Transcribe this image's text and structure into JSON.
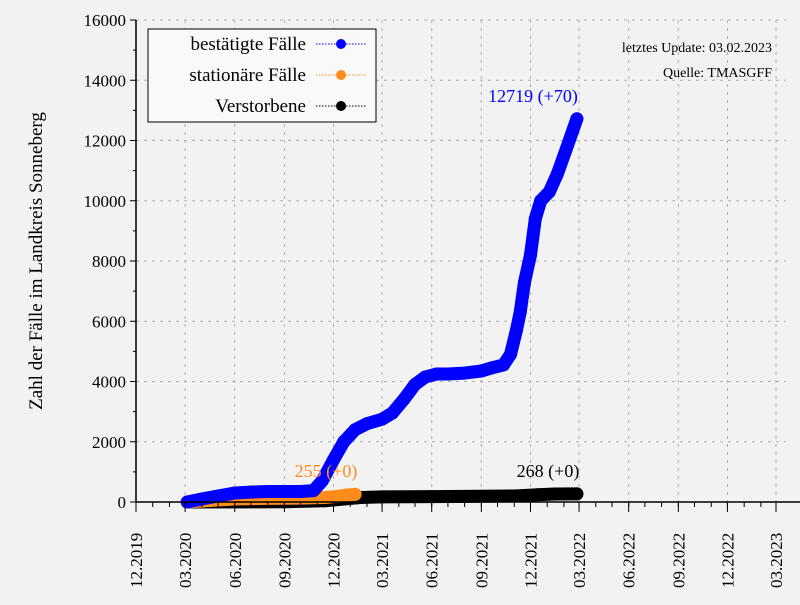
{
  "chart_data": {
    "type": "scatter",
    "title": "",
    "xlabel": "",
    "ylabel": "Zahl der Fälle im Landkreis Sonneberg",
    "ylim": [
      0,
      16000
    ],
    "xlim": [
      "2019-12-01",
      "2023-03-01"
    ],
    "y_ticks": [
      "0",
      "2000",
      "4000",
      "6000",
      "8000",
      "10000",
      "12000",
      "14000",
      "16000"
    ],
    "x_ticks": [
      "12.2019",
      "03.2020",
      "06.2020",
      "09.2020",
      "12.2020",
      "03.2021",
      "06.2021",
      "09.2021",
      "12.2021",
      "03.2022",
      "06.2022",
      "09.2022",
      "12.2022",
      "03.2023"
    ],
    "grid": true,
    "legend_position": "top-left",
    "notes": [
      "letztes Update: 03.02.2023",
      "Quelle: TMASGFF"
    ],
    "series": [
      {
        "name": "bestätigte Fälle",
        "color": "#0000ff",
        "end_label": "12719 (+70)",
        "points": [
          [
            "2020-03-05",
            0
          ],
          [
            "2020-04-01",
            100
          ],
          [
            "2020-05-01",
            200
          ],
          [
            "2020-06-01",
            300
          ],
          [
            "2020-07-01",
            330
          ],
          [
            "2020-08-01",
            350
          ],
          [
            "2020-09-01",
            350
          ],
          [
            "2020-10-01",
            350
          ],
          [
            "2020-10-25",
            380
          ],
          [
            "2020-11-10",
            700
          ],
          [
            "2020-12-01",
            1400
          ],
          [
            "2020-12-20",
            2000
          ],
          [
            "2021-01-10",
            2400
          ],
          [
            "2021-02-01",
            2600
          ],
          [
            "2021-03-01",
            2750
          ],
          [
            "2021-03-20",
            2950
          ],
          [
            "2021-04-10",
            3400
          ],
          [
            "2021-05-01",
            3900
          ],
          [
            "2021-05-20",
            4150
          ],
          [
            "2021-06-10",
            4250
          ],
          [
            "2021-07-01",
            4250
          ],
          [
            "2021-08-01",
            4280
          ],
          [
            "2021-09-01",
            4350
          ],
          [
            "2021-09-20",
            4450
          ],
          [
            "2021-10-12",
            4550
          ],
          [
            "2021-10-25",
            4900
          ],
          [
            "2021-11-05",
            5700
          ],
          [
            "2021-11-12",
            6300
          ],
          [
            "2021-11-20",
            7300
          ],
          [
            "2021-12-01",
            8200
          ],
          [
            "2021-12-10",
            9400
          ],
          [
            "2021-12-20",
            10000
          ],
          [
            "2022-01-05",
            10300
          ],
          [
            "2022-01-20",
            10900
          ],
          [
            "2022-02-05",
            11700
          ],
          [
            "2022-02-25",
            12719
          ]
        ]
      },
      {
        "name": "stationäre Fälle",
        "color": "#ff8c1a",
        "end_label": "255 (+0)",
        "points": [
          [
            "2020-03-05",
            0
          ],
          [
            "2020-04-15",
            50
          ],
          [
            "2020-06-01",
            100
          ],
          [
            "2020-08-01",
            120
          ],
          [
            "2020-10-01",
            130
          ],
          [
            "2020-11-15",
            150
          ],
          [
            "2020-12-10",
            190
          ],
          [
            "2020-12-25",
            230
          ],
          [
            "2021-01-10",
            255
          ]
        ]
      },
      {
        "name": "Verstorbene",
        "color": "#000000",
        "end_label": "268 (+0)",
        "points": [
          [
            "2020-03-05",
            0
          ],
          [
            "2020-09-01",
            5
          ],
          [
            "2020-11-15",
            40
          ],
          [
            "2020-12-20",
            100
          ],
          [
            "2021-01-20",
            150
          ],
          [
            "2021-03-01",
            170
          ],
          [
            "2021-06-01",
            180
          ],
          [
            "2021-09-01",
            190
          ],
          [
            "2021-11-01",
            200
          ],
          [
            "2021-12-15",
            240
          ],
          [
            "2022-01-15",
            265
          ],
          [
            "2022-02-25",
            268
          ]
        ]
      }
    ]
  }
}
